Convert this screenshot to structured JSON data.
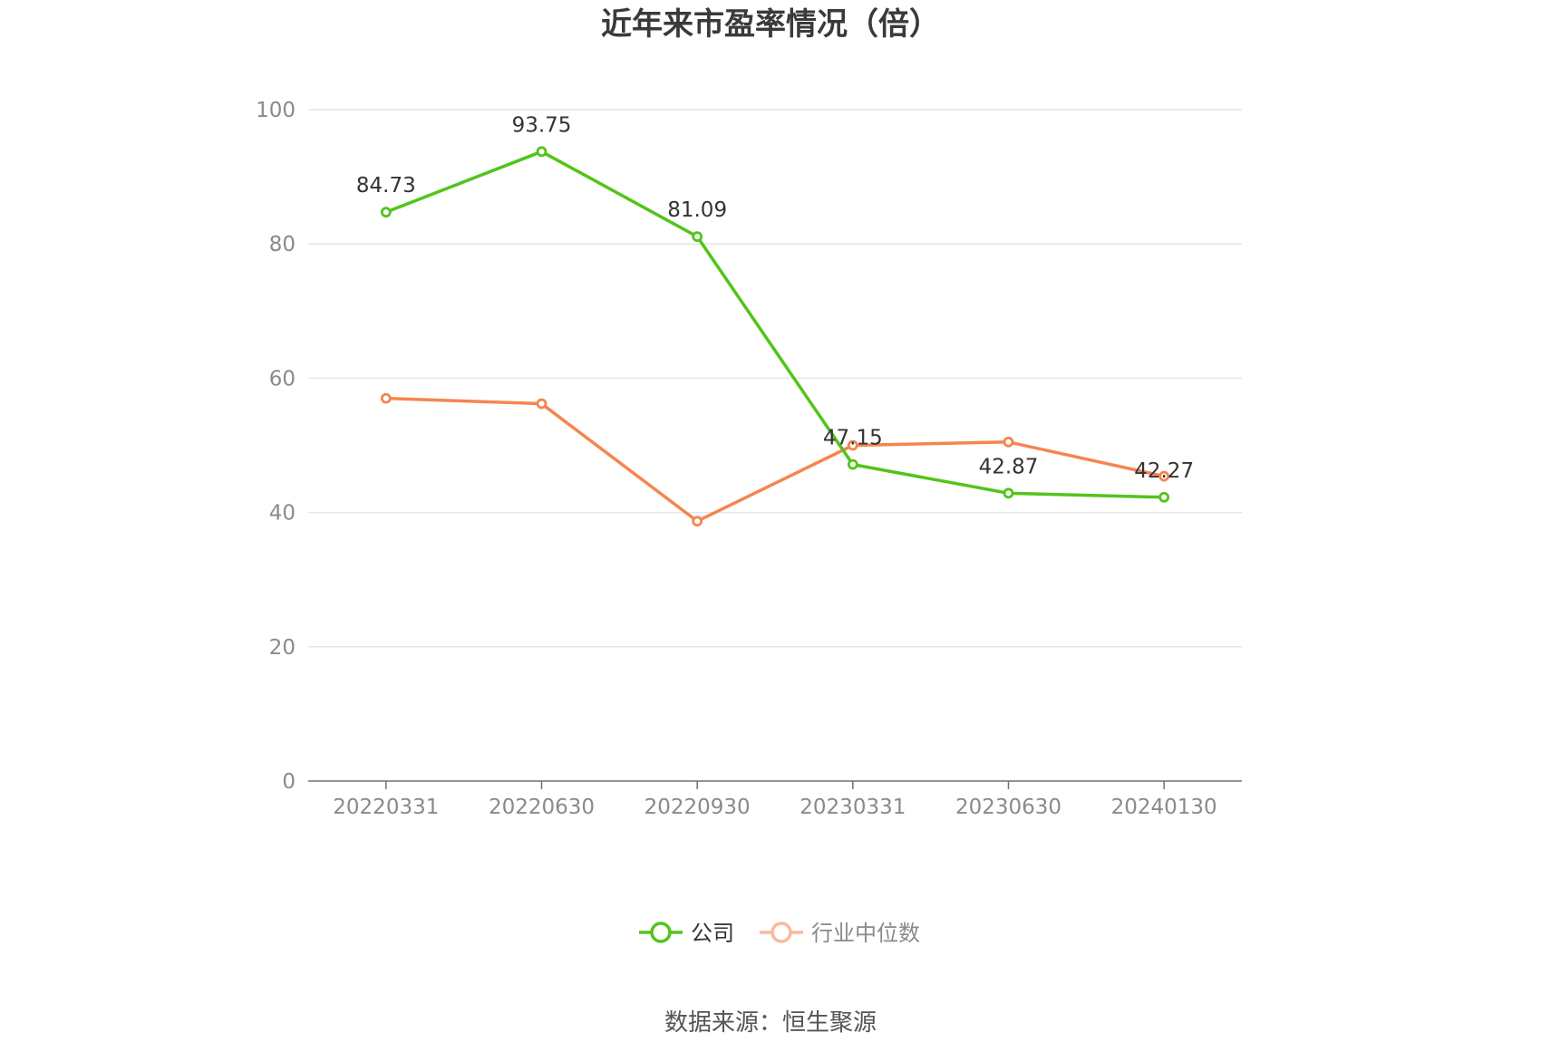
{
  "chart_data": {
    "type": "line",
    "title": "近年来市盈率情况（倍）",
    "categories": [
      "20220331",
      "20220630",
      "20220930",
      "20230331",
      "20230630",
      "20240130"
    ],
    "ylim": [
      0,
      100
    ],
    "yticks": [
      0,
      20,
      40,
      60,
      80,
      100
    ],
    "grid": true,
    "legend_position": "bottom-center",
    "series": [
      {
        "name": "公司",
        "color": "#52c41a",
        "values": [
          84.73,
          93.75,
          81.09,
          47.15,
          42.87,
          42.27
        ],
        "labels": [
          "84.73",
          "93.75",
          "81.09",
          "47.15",
          "42.87",
          "42.27"
        ]
      },
      {
        "name": "行业中位数",
        "color": "#f5854f",
        "legend_color": "#f9b99a",
        "values": [
          57.0,
          56.2,
          38.7,
          50.0,
          50.5,
          45.4
        ]
      }
    ]
  },
  "source": "数据来源：恒生聚源"
}
